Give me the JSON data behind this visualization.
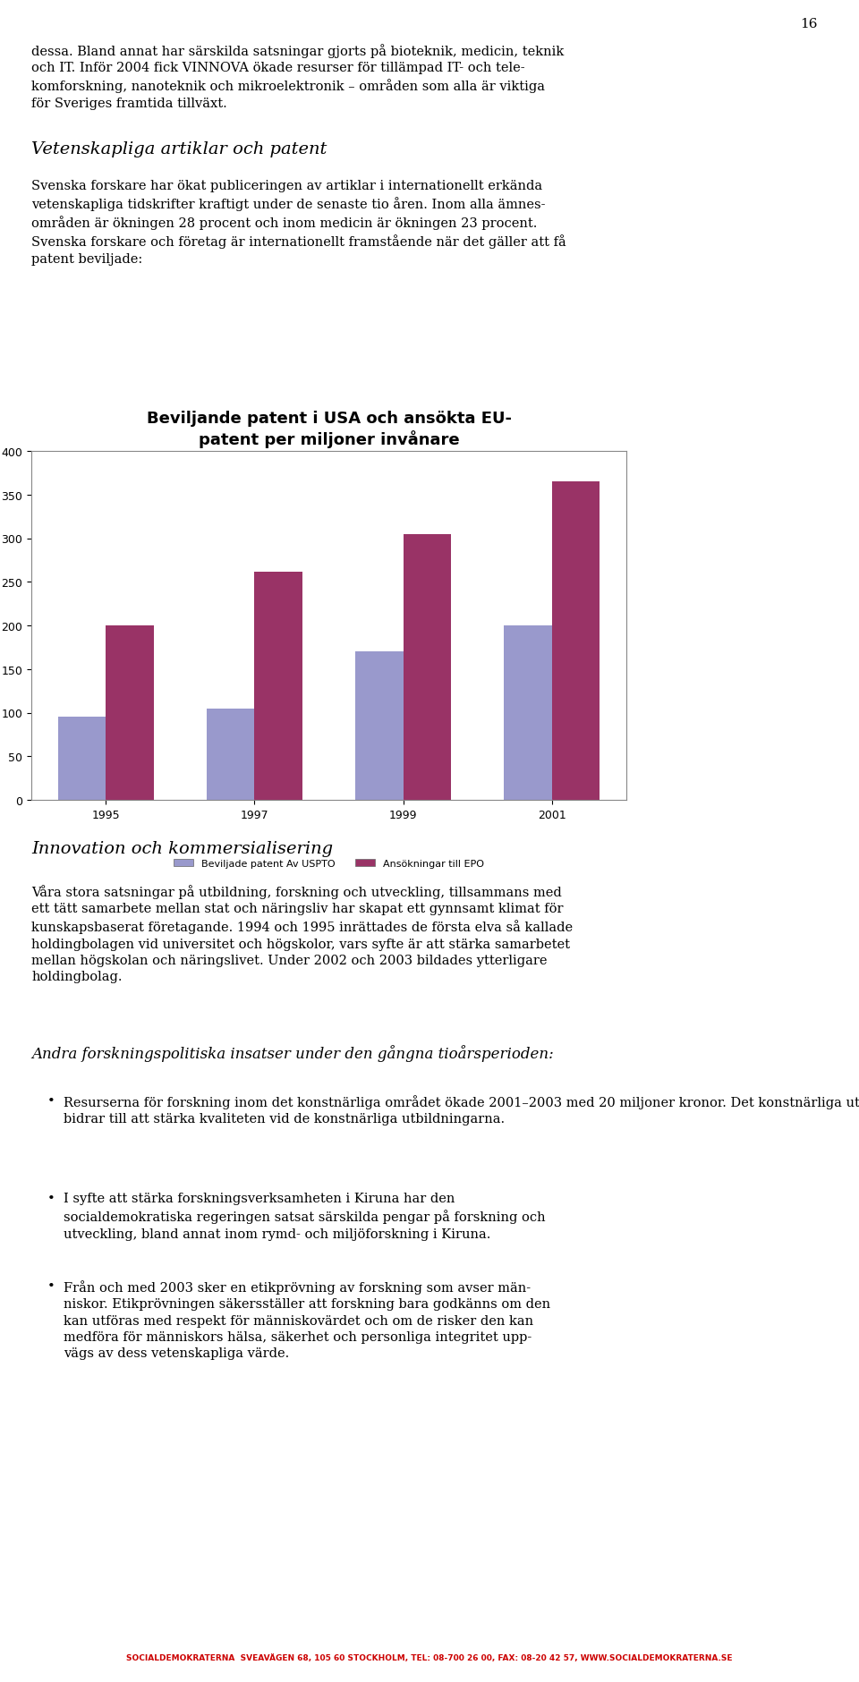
{
  "title_line1": "Beviljande patent i USA och ansökta EU-",
  "title_line2": "patent per miljoner invånare",
  "categories": [
    "1995",
    "1997",
    "1999",
    "2001"
  ],
  "series1_label": "Beviljade patent Av USPTO",
  "series2_label": "Ansökningar till EPO",
  "series1_values": [
    95,
    105,
    170,
    200
  ],
  "series2_values": [
    200,
    262,
    305,
    365
  ],
  "series1_color": "#9999CC",
  "series2_color": "#993366",
  "ylim": [
    0,
    400
  ],
  "yticks": [
    0,
    50,
    100,
    150,
    200,
    250,
    300,
    350,
    400
  ],
  "background_color": "#FFFFFF",
  "chart_bg_color": "#FFFFFF",
  "title_fontsize": 13,
  "tick_fontsize": 9,
  "legend_fontsize": 8,
  "page_number": "16",
  "para1": "dessa. Bland annat har särskilda satsningar gjorts på bioteknik, medicin, teknik\noch IT. Inför 2004 fick VINNOVA ökade resurser för tillämpad IT- och tele-\nkomforskning, nanoteknik och mikroelektronik – områden som alla är viktiga\nför Sveriges framtida tillväxt.",
  "heading1": "Vetenskapliga artiklar och patent",
  "body1": "Svenska forskare har ökat publiceringen av artiklar i internationellt erkända\nvetenskapliga tidskrifter kraftigt under de senaste tio åren. Inom alla ämnes-\nområden är ökningen 28 procent och inom medicin är ökningen 23 procent.\nSvenska forskare och företag är internationellt framstående när det gäller att få\npatent beviljade:",
  "heading2": "Innovation och kommersialisering",
  "body2": "Våra stora satsningar på utbildning, forskning och utveckling, tillsammans med\nett tätt samarbete mellan stat och näringsliv har skapat ett gynnsamt klimat för\nkunskapsbaserat företagande. 1994 och 1995 inrättades de första elva så kallade\nholdingbolagen vid universitet och högskolor, vars syfte är att stärka samarbetet\nmellan högskolan och näringslivet. Under 2002 och 2003 bildades ytterligare\nholdingbolag.",
  "heading3": "Andra forskningspolitiska insatser under den gångna tioårsperioden:",
  "bullet1": "Resurserna för forskning inom det konstnärliga området ökade 2001–2003 med 20 miljoner kronor. Det konstnärliga utvecklingsarbetet\nbidrar till att stärka kvaliteten vid de konstnärliga utbildningarna.",
  "bullet2": "I syfte att stärka forskningsverksamheten i Kiruna har den\nsocialdemokratiska regeringen satsat särskilda pengar på forskning och\nutveckling, bland annat inom rymd- och miljöforskning i Kiruna.",
  "bullet3": "Från och med 2003 sker en etikprövning av forskning som avser män-\nniskor. Etikprövningen säkersställer att forskning bara godkänns om den\nkan utföras med respekt för människovärdet och om de risker den kan\nmedföra för människors hälsa, säkerhet och personliga integritet upp-\nvägs av dess vetenskapliga värde.",
  "footer": "SOCIALDEMOKRATERNA  SVEVÄGEN 68, 105 60 STOCKHOLM, TEL: 08-700 26 00, FAX: 08-20 42 57, WWW.SOCIALDEMOKRATERNA.SE"
}
